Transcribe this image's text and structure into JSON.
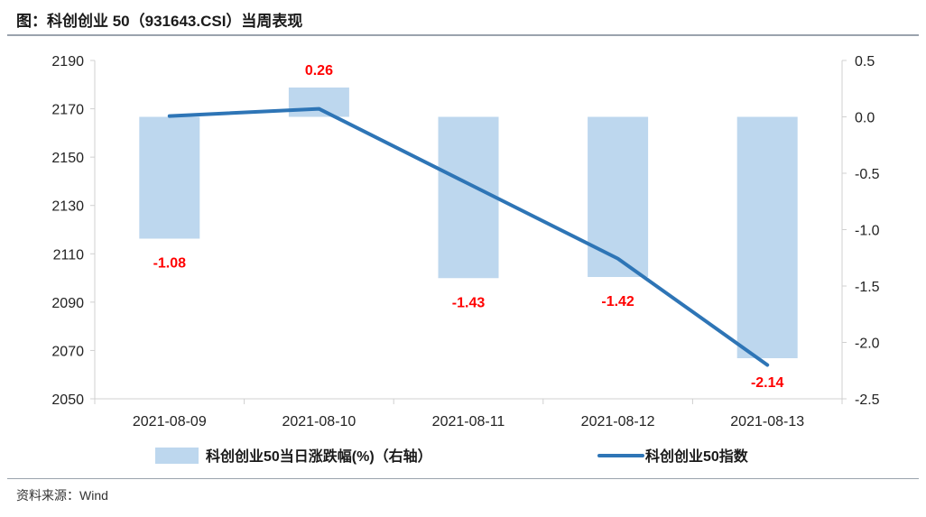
{
  "figure_title": "图：科创创业 50（931643.CSI）当周表现",
  "source_note": "资料来源：Wind",
  "colors": {
    "bar": "#bdd7ee",
    "line": "#2e75b6",
    "data_label": "#ff0000",
    "axis": "#d0d0d0"
  },
  "chart_data": {
    "type": "bar",
    "title": "科创创业 50（931643.CSI）当周表现",
    "categories": [
      "2021-08-09",
      "2021-08-10",
      "2021-08-11",
      "2021-08-12",
      "2021-08-13"
    ],
    "series": [
      {
        "name": "科创创业50当日涨跌幅(%)（右轴）",
        "type": "bar",
        "axis": "right",
        "values": [
          -1.08,
          0.26,
          -1.43,
          -1.42,
          -2.14
        ],
        "data_labels": [
          "-1.08",
          "0.26",
          "-1.43",
          "-1.42",
          "-2.14"
        ]
      },
      {
        "name": "科创创业50指数",
        "type": "line",
        "axis": "left",
        "values": [
          2167,
          2170,
          2139,
          2108,
          2064
        ]
      }
    ],
    "y_left": {
      "min": 2050,
      "max": 2190,
      "ticks": [
        "2050",
        "2070",
        "2090",
        "2110",
        "2130",
        "2150",
        "2170",
        "2190"
      ]
    },
    "y_right": {
      "min": -2.5,
      "max": 0.5,
      "ticks": [
        "-2.5",
        "-2.0",
        "-1.5",
        "-1.0",
        "-0.5",
        "0.0",
        "0.5"
      ]
    },
    "grid": false,
    "legend_position": "bottom"
  }
}
